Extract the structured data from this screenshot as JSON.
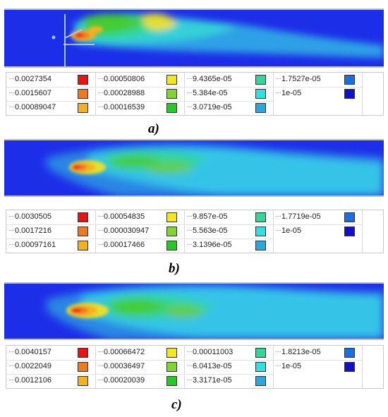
{
  "colors": {
    "red": "#ee1111",
    "orange": "#f07820",
    "amber": "#f5b020",
    "yellow": "#f5e81a",
    "lime": "#80d630",
    "green": "#22cc22",
    "aquamarine": "#30d69a",
    "aqua": "#2ee0e0",
    "sky": "#29a8e0",
    "blue": "#1a6ee0",
    "navy": "#1010cc",
    "field_background": "#1d2ee8",
    "field_light": "#35c4e8"
  },
  "panels": [
    {
      "caption": "a)",
      "legend": {
        "columns": [
          [
            {
              "label": "0.0027354",
              "color": "red"
            },
            {
              "label": "0.0015607",
              "color": "orange"
            },
            {
              "label": "0.00089047",
              "color": "amber"
            }
          ],
          [
            {
              "label": "0.00050806",
              "color": "yellow"
            },
            {
              "label": "0.00028988",
              "color": "lime"
            },
            {
              "label": "0.00016539",
              "color": "green"
            }
          ],
          [
            {
              "label": "9.4365e-05",
              "color": "aquamarine"
            },
            {
              "label": "5.384e-05",
              "color": "aqua"
            },
            {
              "label": "3.0719e-05",
              "color": "sky"
            }
          ],
          [
            {
              "label": "1.7527e-05",
              "color": "blue"
            },
            {
              "label": "1e-05",
              "color": "navy"
            }
          ]
        ]
      }
    },
    {
      "caption": "b)",
      "legend": {
        "columns": [
          [
            {
              "label": "0.0030505",
              "color": "red"
            },
            {
              "label": "0.0017216",
              "color": "orange"
            },
            {
              "label": "0.00097161",
              "color": "amber"
            }
          ],
          [
            {
              "label": "0.00054835",
              "color": "yellow"
            },
            {
              "label": "0.000030947",
              "color": "lime"
            },
            {
              "label": "0.00017466",
              "color": "green"
            }
          ],
          [
            {
              "label": "9.857e-05",
              "color": "aquamarine"
            },
            {
              "label": "5.563e-05",
              "color": "aqua"
            },
            {
              "label": "3.1396e-05",
              "color": "sky"
            }
          ],
          [
            {
              "label": "1.7719e-05",
              "color": "blue"
            },
            {
              "label": "1e-05",
              "color": "navy"
            }
          ]
        ]
      }
    },
    {
      "caption": "c)",
      "legend": {
        "columns": [
          [
            {
              "label": "0.0040157",
              "color": "red"
            },
            {
              "label": "0.0022049",
              "color": "orange"
            },
            {
              "label": "0.0012106",
              "color": "amber"
            }
          ],
          [
            {
              "label": "0.00066472",
              "color": "yellow"
            },
            {
              "label": "0.00036497",
              "color": "lime"
            },
            {
              "label": "0.00020039",
              "color": "green"
            }
          ],
          [
            {
              "label": "0.00011003",
              "color": "aquamarine"
            },
            {
              "label": "6.0413e-05",
              "color": "aqua"
            },
            {
              "label": "3.3171e-05",
              "color": "sky"
            }
          ],
          [
            {
              "label": "1.8213e-05",
              "color": "blue"
            },
            {
              "label": "1e-05",
              "color": "navy"
            }
          ]
        ]
      }
    }
  ]
}
